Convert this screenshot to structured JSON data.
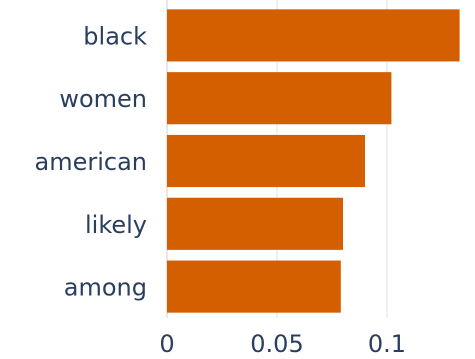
{
  "chart_data": {
    "type": "bar",
    "orientation": "horizontal",
    "categories": [
      "black",
      "women",
      "american",
      "likely",
      "among"
    ],
    "values": [
      0.133,
      0.102,
      0.09,
      0.08,
      0.079
    ],
    "xlim": [
      0,
      0.135
    ],
    "xticks": [
      0,
      0.05,
      0.1
    ],
    "xtick_labels": [
      "0",
      "0.05",
      "0.1"
    ],
    "title": "",
    "xlabel": "",
    "ylabel": "",
    "grid": "vertical",
    "legend": "none",
    "colors": {
      "bar": "#d45f00",
      "grid": "#e8ebf3",
      "zero_line": "#e3e7ef",
      "text": "#2a3f5f"
    }
  }
}
